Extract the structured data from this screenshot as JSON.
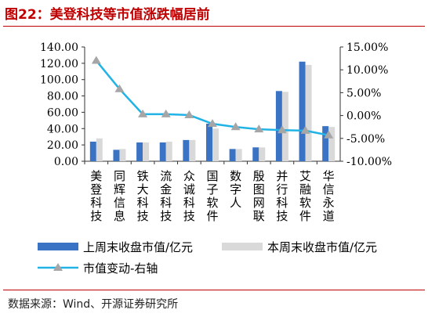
{
  "title": "图22：美登科技等市值涨跌幅居前",
  "source": "数据来源：Wind、开源证券研究所",
  "colors": {
    "current": "#3a72c4",
    "previous": "#d9d9d9",
    "change_line": "#22b3e6",
    "marker": "#a6a6a6",
    "title": "#c00000"
  },
  "chart_data": {
    "type": "bar",
    "categories": [
      "美登科技",
      "同辉信息",
      "铁大科技",
      "流金科技",
      "众诚科技",
      "国子软件",
      "数字人",
      "殷图网联",
      "并行科技",
      "艾融软件",
      "华信永道"
    ],
    "series": [
      {
        "name": "上周末收盘市值/亿元",
        "type": "bar",
        "axis": "left",
        "values": [
          24,
          14,
          23,
          23,
          26,
          46,
          15,
          17,
          86,
          122,
          43
        ]
      },
      {
        "name": "本周末收盘市值/亿元",
        "type": "bar",
        "axis": "left",
        "values": [
          28,
          15,
          23,
          24,
          26,
          40,
          15,
          17,
          85,
          118,
          42
        ]
      },
      {
        "name": "市值变动-右轴",
        "type": "line",
        "axis": "right",
        "values": [
          12.0,
          5.8,
          0.3,
          0.3,
          0.1,
          -1.8,
          -2.5,
          -3.0,
          -3.2,
          -3.3,
          -4.3
        ]
      }
    ],
    "y_left": {
      "min": 0,
      "max": 140,
      "ticks": [
        "0.00",
        "20.00",
        "40.00",
        "60.00",
        "80.00",
        "100.00",
        "120.00",
        "140.00"
      ]
    },
    "y_right": {
      "min": -10,
      "max": 15,
      "ticks": [
        "-10.00%",
        "-5.00%",
        "0.00%",
        "5.00%",
        "10.00%",
        "15.00%"
      ]
    },
    "legend_position": "bottom"
  }
}
